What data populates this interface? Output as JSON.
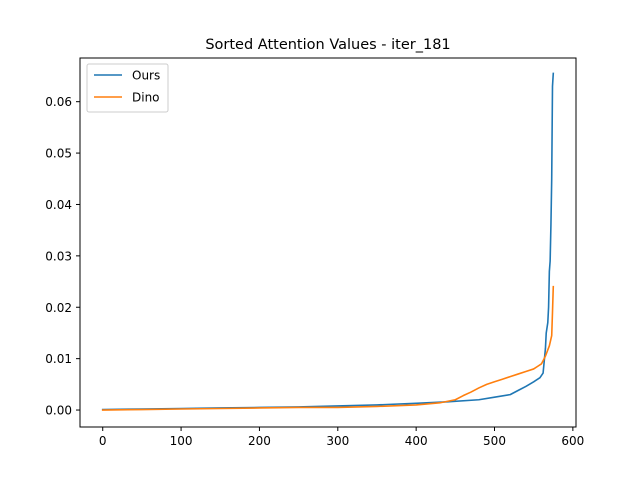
{
  "chart_data": {
    "type": "line",
    "title": "Sorted Attention Values - iter_181",
    "xlabel": "",
    "ylabel": "",
    "xlim": [
      -29,
      604
    ],
    "ylim": [
      -0.0033,
      0.0685
    ],
    "xticks": [
      0,
      100,
      200,
      300,
      400,
      500,
      600
    ],
    "xtick_labels": [
      "0",
      "100",
      "200",
      "300",
      "400",
      "500",
      "600"
    ],
    "yticks": [
      0.0,
      0.01,
      0.02,
      0.03,
      0.04,
      0.05,
      0.06
    ],
    "ytick_labels": [
      "0.00",
      "0.01",
      "0.02",
      "0.03",
      "0.04",
      "0.05",
      "0.06"
    ],
    "grid": false,
    "legend_position": "upper-left",
    "series": [
      {
        "name": "Ours",
        "color": "#1f77b4",
        "x": [
          0,
          50,
          100,
          150,
          200,
          250,
          300,
          350,
          400,
          440,
          480,
          500,
          520,
          530,
          540,
          550,
          558,
          562,
          565,
          566,
          568,
          569,
          570,
          571,
          572,
          573,
          574,
          575
        ],
        "y": [
          0.0001,
          0.0002,
          0.0003,
          0.0004,
          0.0005,
          0.0006,
          0.0008,
          0.001,
          0.0013,
          0.0016,
          0.002,
          0.0025,
          0.003,
          0.0038,
          0.0046,
          0.0055,
          0.0063,
          0.0072,
          0.012,
          0.015,
          0.017,
          0.02,
          0.027,
          0.029,
          0.036,
          0.045,
          0.063,
          0.0655
        ]
      },
      {
        "name": "Dino",
        "color": "#ff7f0e",
        "x": [
          0,
          50,
          100,
          150,
          200,
          250,
          300,
          350,
          400,
          430,
          450,
          460,
          470,
          480,
          490,
          500,
          510,
          520,
          530,
          540,
          550,
          555,
          560,
          565,
          570,
          573,
          574,
          575
        ],
        "y": [
          0.0,
          0.0001,
          0.0002,
          0.0003,
          0.0004,
          0.0005,
          0.0005,
          0.0007,
          0.001,
          0.0014,
          0.002,
          0.0028,
          0.0035,
          0.0043,
          0.005,
          0.0055,
          0.006,
          0.0065,
          0.007,
          0.0075,
          0.008,
          0.0085,
          0.009,
          0.0105,
          0.0125,
          0.0145,
          0.019,
          0.024
        ]
      }
    ]
  }
}
